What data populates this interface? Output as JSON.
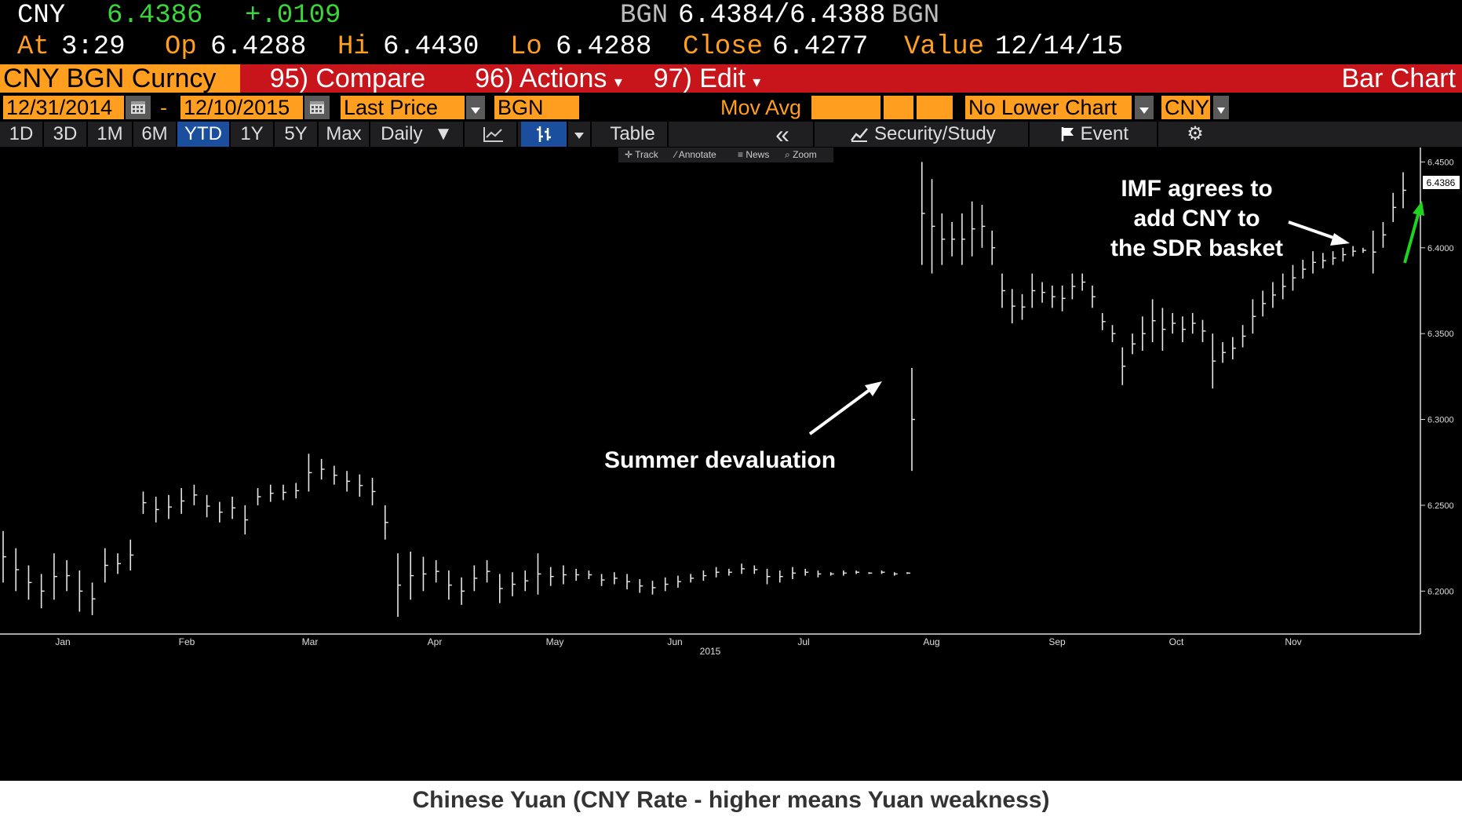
{
  "quote": {
    "ticker": "CNY",
    "last": "6.4386",
    "change": "+.0109",
    "bid_src": "BGN",
    "bid": "6.4384",
    "sep": "/",
    "ask": "6.4388",
    "ask_src": "BGN",
    "at_label": "At",
    "time": "3:29",
    "op_label": "Op",
    "open": "6.4288",
    "hi_label": "Hi",
    "high": "6.4430",
    "lo_label": "Lo",
    "low": "6.4288",
    "close_label": "Close",
    "close": "6.4277",
    "value_label": "Value",
    "value_date": "12/14/15"
  },
  "menu": {
    "security": "CNY BGN Curncy",
    "compare": "95) Compare",
    "actions": "96) Actions",
    "edit": "97) Edit",
    "chart_type": "Bar Chart",
    "dropdown_glyph": "▾"
  },
  "params": {
    "start_date": "12/31/2014",
    "dash": "-",
    "end_date": "12/10/2015",
    "field": "Last Price",
    "source": "BGN",
    "mov_avg": "Mov Avg",
    "lower_chart": "No Lower Chart",
    "currency": "CNY"
  },
  "toolbar": {
    "periods": [
      "1D",
      "3D",
      "1M",
      "6M",
      "YTD",
      "1Y",
      "5Y",
      "Max"
    ],
    "selected_period": "YTD",
    "frequency": "Daily",
    "frequency_arrow": "▼",
    "table": "Table",
    "collapse": "«",
    "security_study": "Security/Study",
    "event": "Event",
    "settings_glyph": "⚙"
  },
  "subtools": {
    "track": "Track",
    "annotate": "Annotate",
    "news": "News",
    "zoom": "Zoom"
  },
  "annotations": {
    "devaluation": "Summer devaluation",
    "imf_line1": "IMF agrees to",
    "imf_line2": "add CNY to",
    "imf_line3": "the SDR basket"
  },
  "caption": "Chinese Yuan (CNY Rate - higher means Yuan weakness)",
  "colors": {
    "orange": "#ff9e1f",
    "green": "#3bd63b",
    "red_bar": "#c8151b",
    "selected_blue": "#1b4f9e",
    "arrow_green": "#1ed41e"
  },
  "chart_data": {
    "type": "bar",
    "title": "",
    "xlabel": "2015",
    "ylabel": "",
    "ylim": [
      6.175,
      6.4584
    ],
    "y_ticks": [
      "6.2000",
      "6.2500",
      "6.3000",
      "6.3500",
      "6.4000",
      "6.4500"
    ],
    "x_ticks": [
      "Jan",
      "Feb",
      "Mar",
      "Apr",
      "May",
      "Jun",
      "Jul",
      "Aug",
      "Sep",
      "Oct",
      "Nov"
    ],
    "year_label": "2015",
    "last_price_label": "6.4386",
    "grid": false,
    "series": [
      {
        "name": "CNY",
        "points": [
          [
            6.205,
            6.235
          ],
          [
            6.2,
            6.225
          ],
          [
            6.195,
            6.215
          ],
          [
            6.19,
            6.21
          ],
          [
            6.195,
            6.222
          ],
          [
            6.2,
            6.218
          ],
          [
            6.188,
            6.212
          ],
          [
            6.186,
            6.205
          ],
          [
            6.205,
            6.225
          ],
          [
            6.21,
            6.222
          ],
          [
            6.212,
            6.23
          ],
          [
            6.245,
            6.258
          ],
          [
            6.24,
            6.255
          ],
          [
            6.242,
            6.256
          ],
          [
            6.245,
            6.26
          ],
          [
            6.25,
            6.262
          ],
          [
            6.243,
            6.256
          ],
          [
            6.24,
            6.252
          ],
          [
            6.242,
            6.255
          ],
          [
            6.233,
            6.25
          ],
          [
            6.25,
            6.26
          ],
          [
            6.252,
            6.262
          ],
          [
            6.253,
            6.262
          ],
          [
            6.254,
            6.263
          ],
          [
            6.258,
            6.28
          ],
          [
            6.265,
            6.277
          ],
          [
            6.262,
            6.273
          ],
          [
            6.258,
            6.27
          ],
          [
            6.255,
            6.268
          ],
          [
            6.25,
            6.266
          ],
          [
            6.23,
            6.25
          ],
          [
            6.185,
            6.222
          ],
          [
            6.195,
            6.223
          ],
          [
            6.2,
            6.22
          ],
          [
            6.205,
            6.218
          ],
          [
            6.195,
            6.212
          ],
          [
            6.192,
            6.208
          ],
          [
            6.2,
            6.215
          ],
          [
            6.205,
            6.218
          ],
          [
            6.193,
            6.21
          ],
          [
            6.197,
            6.211
          ],
          [
            6.2,
            6.212
          ],
          [
            6.198,
            6.222
          ],
          [
            6.203,
            6.214
          ],
          [
            6.204,
            6.215
          ],
          [
            6.206,
            6.213
          ],
          [
            6.207,
            6.212
          ],
          [
            6.203,
            6.21
          ],
          [
            6.204,
            6.211
          ],
          [
            6.201,
            6.21
          ],
          [
            6.199,
            6.207
          ],
          [
            6.198,
            6.206
          ],
          [
            6.2,
            6.208
          ],
          [
            6.202,
            6.209
          ],
          [
            6.205,
            6.21
          ],
          [
            6.206,
            6.212
          ],
          [
            6.208,
            6.214
          ],
          [
            6.209,
            6.213
          ],
          [
            6.21,
            6.216
          ],
          [
            6.21,
            6.215
          ],
          [
            6.204,
            6.213
          ],
          [
            6.205,
            6.212
          ],
          [
            6.207,
            6.214
          ],
          [
            6.209,
            6.213
          ],
          [
            6.208,
            6.212
          ],
          [
            6.209,
            6.211
          ],
          [
            6.209,
            6.212
          ],
          [
            6.21,
            6.212
          ],
          [
            6.21,
            6.211
          ],
          [
            6.21,
            6.212
          ],
          [
            6.209,
            6.211
          ],
          [
            6.21,
            6.211
          ],
          [
            6.27,
            6.33
          ],
          [
            6.39,
            6.45
          ],
          [
            6.385,
            6.44
          ],
          [
            6.39,
            6.42
          ],
          [
            6.395,
            6.415
          ],
          [
            6.39,
            6.42
          ],
          [
            6.395,
            6.427
          ],
          [
            6.4,
            6.425
          ],
          [
            6.39,
            6.41
          ],
          [
            6.365,
            6.385
          ],
          [
            6.356,
            6.376
          ],
          [
            6.358,
            6.373
          ],
          [
            6.365,
            6.385
          ],
          [
            6.368,
            6.38
          ],
          [
            6.365,
            6.378
          ],
          [
            6.363,
            6.378
          ],
          [
            6.37,
            6.385
          ],
          [
            6.375,
            6.385
          ],
          [
            6.365,
            6.378
          ],
          [
            6.352,
            6.362
          ],
          [
            6.345,
            6.355
          ],
          [
            6.32,
            6.342
          ],
          [
            6.338,
            6.35
          ],
          [
            6.34,
            6.36
          ],
          [
            6.345,
            6.37
          ],
          [
            6.34,
            6.365
          ],
          [
            6.35,
            6.362
          ],
          [
            6.345,
            6.36
          ],
          [
            6.35,
            6.362
          ],
          [
            6.345,
            6.358
          ],
          [
            6.318,
            6.35
          ],
          [
            6.333,
            6.345
          ],
          [
            6.335,
            6.348
          ],
          [
            6.342,
            6.355
          ],
          [
            6.35,
            6.37
          ],
          [
            6.36,
            6.375
          ],
          [
            6.365,
            6.38
          ],
          [
            6.37,
            6.385
          ],
          [
            6.375,
            6.39
          ],
          [
            6.382,
            6.393
          ],
          [
            6.385,
            6.398
          ],
          [
            6.388,
            6.397
          ],
          [
            6.39,
            6.398
          ],
          [
            6.392,
            6.4
          ],
          [
            6.395,
            6.401
          ],
          [
            6.397,
            6.4
          ],
          [
            6.385,
            6.41
          ],
          [
            6.4,
            6.415
          ],
          [
            6.415,
            6.432
          ],
          [
            6.423,
            6.444
          ]
        ]
      }
    ]
  }
}
